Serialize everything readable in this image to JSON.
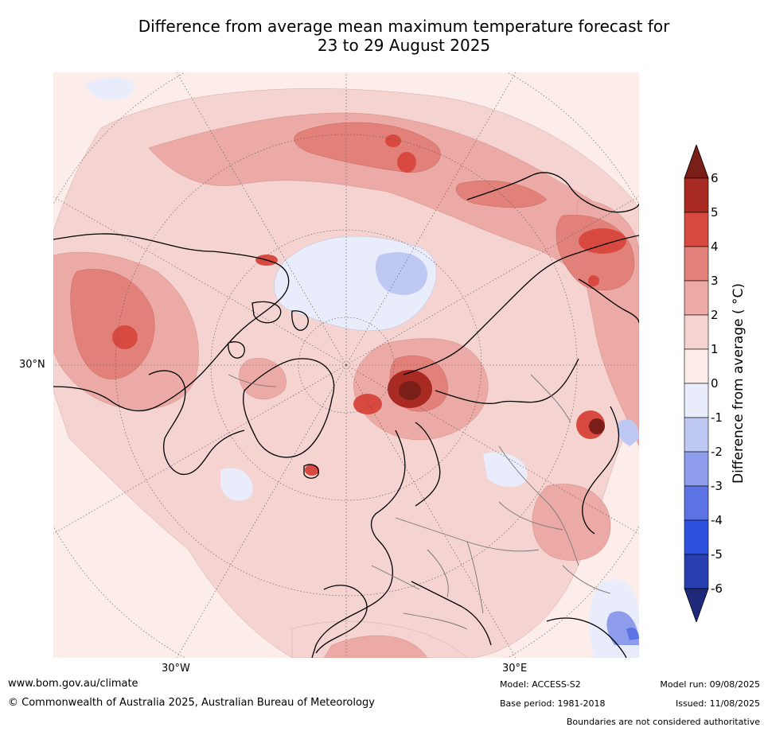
{
  "title_line1": "Difference from average mean maximum temperature forecast for",
  "title_line2": "23 to 29 August 2025",
  "map": {
    "projection": "north polar stereographic",
    "lat_label": "30°N",
    "lon_labels": [
      "30°W",
      "30°E"
    ]
  },
  "colorbar": {
    "label": "Difference from average ( °C)",
    "ticks": [
      "6",
      "5",
      "4",
      "3",
      "2",
      "1",
      "0",
      "-1",
      "-2",
      "-3",
      "-4",
      "-5",
      "-6"
    ],
    "bins": [
      {
        "range": "above 6",
        "color": "#7a1e18"
      },
      {
        "range": "5 to 6",
        "color": "#a82a22"
      },
      {
        "range": "4 to 5",
        "color": "#d84a40"
      },
      {
        "range": "3 to 4",
        "color": "#e2817a"
      },
      {
        "range": "2 to 3",
        "color": "#ebaaa5"
      },
      {
        "range": "1 to 2",
        "color": "#f4d3d0"
      },
      {
        "range": "0 to 1",
        "color": "#fcecea"
      },
      {
        "range": "-1 to 0",
        "color": "#e8ecfb"
      },
      {
        "range": "-2 to -1",
        "color": "#bfc8f3"
      },
      {
        "range": "-3 to -2",
        "color": "#8d9ceb"
      },
      {
        "range": "-4 to -3",
        "color": "#5b73e3"
      },
      {
        "range": "-5 to -4",
        "color": "#2e50de"
      },
      {
        "range": "-6 to -5",
        "color": "#283fb0"
      },
      {
        "range": "below -6",
        "color": "#1f2a7a"
      }
    ]
  },
  "footer": {
    "website": "www.bom.gov.au/climate",
    "copyright": "© Commonwealth of Australia 2025, Australian Bureau of Meteorology",
    "model": "Model: ACCESS-S2",
    "base_period": "Base period: 1981-2018",
    "model_run": "Model run: 09/08/2025",
    "issued": "Issued: 11/08/2025",
    "disclaimer": "Boundaries are not considered authoritative"
  }
}
